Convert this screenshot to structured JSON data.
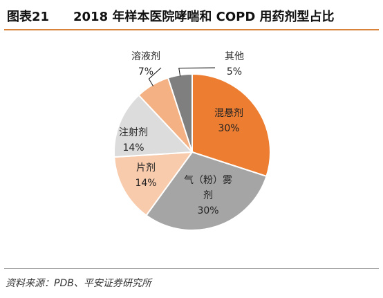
{
  "figure": {
    "number": "图表21",
    "title": "2018 年样本医院哮喘和 COPD 用药剂型占比",
    "source": "资料来源：PDB、平安证券研究所"
  },
  "chart_data": {
    "type": "pie",
    "title": "2018 年样本医院哮喘和 COPD 用药剂型占比",
    "slices": [
      {
        "name": "混悬剂",
        "value": 30,
        "label": "30%",
        "color": "#ed7d31"
      },
      {
        "name": "气（粉）雾剂",
        "value": 30,
        "label": "30%",
        "color": "#a5a5a5"
      },
      {
        "name": "片剂",
        "value": 14,
        "label": "14%",
        "color": "#f8cbad"
      },
      {
        "name": "注射剂",
        "value": 14,
        "label": "14%",
        "color": "#dcdcdc"
      },
      {
        "name": "溶液剂",
        "value": 7,
        "label": "7%",
        "color": "#f4b183"
      },
      {
        "name": "其他",
        "value": 5,
        "label": "5%",
        "color": "#7f7f7f"
      }
    ],
    "start_angle_deg": 0,
    "direction": "clockwise",
    "legend": "none"
  }
}
